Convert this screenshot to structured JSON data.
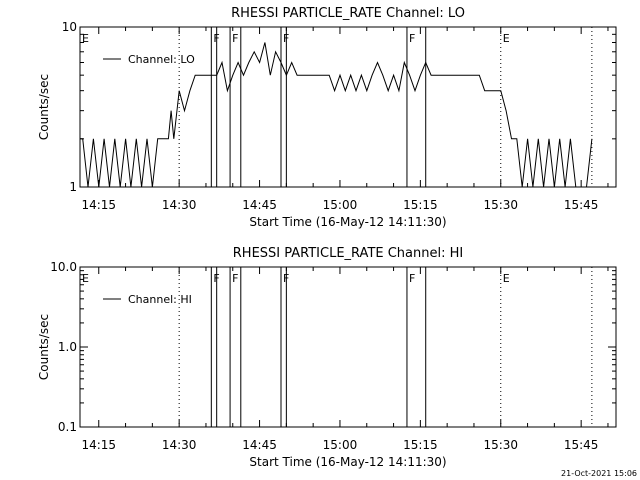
{
  "footer": {
    "timestamp": "21-Oct-2021 15:06"
  },
  "chart_data": [
    {
      "type": "line",
      "title": "RHESSI PARTICLE_RATE Channel: LO",
      "xlabel": "Start Time (16-May-12 14:11:30)",
      "ylabel": "Counts/sec",
      "xlim": [
        "14:11:30",
        "15:51:30"
      ],
      "ylim": [
        1,
        10
      ],
      "y_scale": "log",
      "x_ticks": [
        "14:15",
        "14:30",
        "14:45",
        "15:00",
        "15:15",
        "15:30",
        "15:45"
      ],
      "y_ticks": [
        "1",
        "10"
      ],
      "legend": {
        "position": "top-left",
        "entries": [
          "Channel: LO"
        ]
      },
      "grid": false,
      "series": [
        {
          "name": "Channel: LO",
          "x": [
            "14:11:30",
            "14:12:00",
            "14:13:00",
            "14:14:00",
            "14:15:00",
            "14:16:00",
            "14:17:00",
            "14:18:00",
            "14:19:00",
            "14:20:00",
            "14:21:00",
            "14:22:00",
            "14:23:00",
            "14:24:00",
            "14:25:00",
            "14:26:00",
            "14:27:00",
            "14:28:00",
            "14:28:30",
            "14:29:00",
            "14:30:00",
            "14:31:00",
            "14:32:00",
            "14:33:00",
            "14:34:00",
            "14:35:00",
            "14:36:00",
            "14:37:00",
            "14:38:00",
            "14:39:00",
            "14:40:00",
            "14:41:00",
            "14:42:00",
            "14:43:00",
            "14:44:00",
            "14:45:00",
            "14:46:00",
            "14:47:00",
            "14:48:00",
            "14:49:00",
            "14:50:00",
            "14:51:00",
            "14:52:00",
            "14:53:00",
            "14:54:00",
            "14:55:00",
            "14:56:00",
            "14:57:00",
            "14:58:00",
            "14:59:00",
            "15:00:00",
            "15:01:00",
            "15:02:00",
            "15:03:00",
            "15:04:00",
            "15:05:00",
            "15:06:00",
            "15:07:00",
            "15:08:00",
            "15:09:00",
            "15:10:00",
            "15:11:00",
            "15:12:00",
            "15:13:00",
            "15:14:00",
            "15:15:00",
            "15:16:00",
            "15:17:00",
            "15:18:00",
            "15:19:00",
            "15:20:00",
            "15:21:00",
            "15:22:00",
            "15:23:00",
            "15:24:00",
            "15:25:00",
            "15:26:00",
            "15:27:00",
            "15:28:00",
            "15:29:00",
            "15:30:00",
            "15:31:00",
            "15:32:00",
            "15:33:00",
            "15:34:00",
            "15:35:00",
            "15:36:00",
            "15:37:00",
            "15:38:00",
            "15:39:00",
            "15:40:00",
            "15:41:00",
            "15:42:00",
            "15:43:00",
            "15:44:00",
            "15:45:00",
            "15:46:00",
            "15:47:00"
          ],
          "y": [
            2,
            2,
            1,
            2,
            1,
            2,
            1,
            2,
            1,
            2,
            1,
            2,
            1,
            2,
            1,
            2,
            2,
            2,
            3,
            2,
            4,
            3,
            4,
            5,
            5,
            5,
            5,
            5,
            6,
            4,
            5,
            6,
            5,
            6,
            7,
            6,
            8,
            5,
            7,
            6,
            5,
            6,
            5,
            5,
            5,
            5,
            5,
            5,
            5,
            4,
            5,
            4,
            5,
            4,
            5,
            4,
            5,
            6,
            5,
            4,
            5,
            4,
            6,
            5,
            4,
            5,
            6,
            5,
            5,
            5,
            5,
            5,
            5,
            5,
            5,
            5,
            5,
            4,
            4,
            4,
            4,
            3,
            2,
            2,
            1,
            2,
            1,
            2,
            1,
            2,
            1,
            2,
            1,
            2,
            1,
            1,
            1,
            2
          ]
        }
      ],
      "event_lines": {
        "solid": [
          "14:36:00",
          "14:37:00",
          "14:39:30",
          "14:41:30",
          "14:49:00",
          "14:50:00",
          "15:12:30",
          "15:16:00"
        ],
        "dotted": [
          "14:30:00",
          "15:30:00",
          "15:47:00"
        ]
      },
      "annotations": [
        {
          "text": "E",
          "at": "14:11:30"
        },
        {
          "text": "F",
          "at": "14:36:00"
        },
        {
          "text": "F",
          "at": "14:39:30"
        },
        {
          "text": "F",
          "at": "14:49:00"
        },
        {
          "text": "F",
          "at": "15:12:30"
        },
        {
          "text": "E",
          "at": "15:30:00"
        }
      ]
    },
    {
      "type": "line",
      "title": "RHESSI PARTICLE_RATE Channel: HI",
      "xlabel": "Start Time (16-May-12 14:11:30)",
      "ylabel": "Counts/sec",
      "xlim": [
        "14:11:30",
        "15:51:30"
      ],
      "ylim": [
        0.1,
        10
      ],
      "y_scale": "log",
      "x_ticks": [
        "14:15",
        "14:30",
        "14:45",
        "15:00",
        "15:15",
        "15:30",
        "15:45"
      ],
      "y_ticks": [
        "0.1",
        "1.0",
        "10.0"
      ],
      "legend": {
        "position": "top-left",
        "entries": [
          "Channel: HI"
        ]
      },
      "grid": false,
      "series": [
        {
          "name": "Channel: HI",
          "x": [],
          "y": []
        }
      ],
      "event_lines": {
        "solid": [
          "14:36:00",
          "14:37:00",
          "14:39:30",
          "14:41:30",
          "14:49:00",
          "14:50:00",
          "15:12:30",
          "15:16:00"
        ],
        "dotted": [
          "14:30:00",
          "15:30:00",
          "15:47:00"
        ]
      },
      "annotations": [
        {
          "text": "E",
          "at": "14:11:30"
        },
        {
          "text": "F",
          "at": "14:36:00"
        },
        {
          "text": "F",
          "at": "14:39:30"
        },
        {
          "text": "F",
          "at": "14:49:00"
        },
        {
          "text": "F",
          "at": "15:12:30"
        },
        {
          "text": "E",
          "at": "15:30:00"
        }
      ]
    }
  ]
}
